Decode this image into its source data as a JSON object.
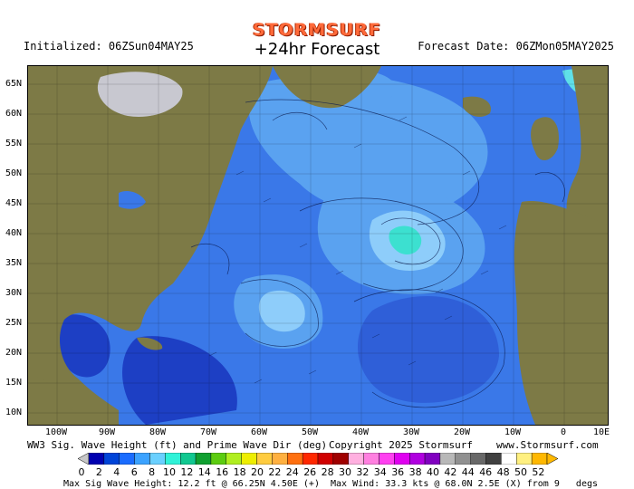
{
  "header": {
    "logo_text": "STORMSURF",
    "forecast_label": "+24hr Forecast",
    "initialized": "Initialized: 06ZSun04MAY25",
    "forecast_date": "Forecast Date: 06ZMon05MAY2025"
  },
  "map": {
    "lat_labels": [
      "65N",
      "60N",
      "55N",
      "50N",
      "45N",
      "40N",
      "35N",
      "30N",
      "25N",
      "20N",
      "15N",
      "10N"
    ],
    "lon_labels": [
      "100W",
      "90W",
      "80W",
      "70W",
      "60W",
      "50W",
      "40W",
      "30W",
      "20W",
      "10W",
      "0",
      "10E"
    ],
    "colors": {
      "land": "#7d7a46",
      "ice": "#c8c8d0",
      "ocean_base": "#3a78e8"
    }
  },
  "caption": {
    "left": "WW3 Sig. Wave Height (ft) and Prime Wave Dir (deg)",
    "middle": "Copyright 2025 Stormsurf",
    "right": "www.Stormsurf.com"
  },
  "colorbar": {
    "colors": [
      "#0000b0",
      "#0044d8",
      "#1a6cff",
      "#3ba2ff",
      "#6ad0ff",
      "#2ff2d8",
      "#10c890",
      "#10a030",
      "#5ccc10",
      "#b0ee20",
      "#eeee00",
      "#ffcc40",
      "#ffb040",
      "#ff7010",
      "#ff2800",
      "#d00000",
      "#a00000",
      "#ffb0e0",
      "#ff80e0",
      "#ff40f0",
      "#e000f0",
      "#b000e0",
      "#8000c0",
      "#b8b8b8",
      "#909090",
      "#686868",
      "#404040",
      "#ffffff",
      "#fff080",
      "#ffb800"
    ],
    "labels": [
      "0",
      "2",
      "4",
      "6",
      "8",
      "10",
      "12",
      "14",
      "16",
      "18",
      "20",
      "22",
      "24",
      "26",
      "28",
      "30",
      "32",
      "34",
      "36",
      "38",
      "40",
      "42",
      "44",
      "46",
      "48",
      "50",
      "52"
    ]
  },
  "footer": "Max Sig Wave Height: 12.2 ft @ 66.25N 4.50E (+)  Max Wind: 33.3 kts @ 68.0N 2.5E (X) from 9   degs"
}
